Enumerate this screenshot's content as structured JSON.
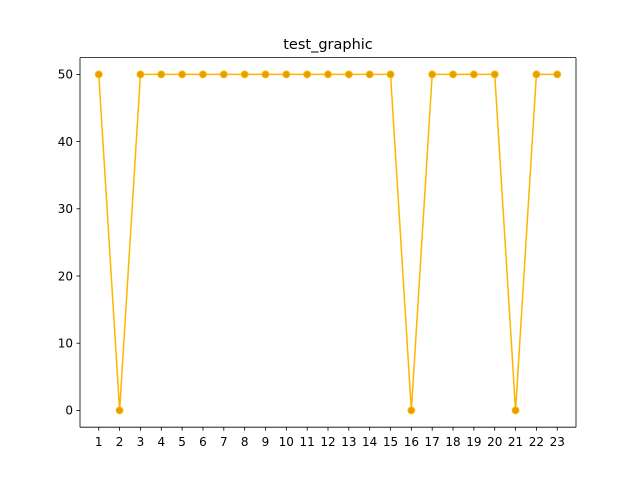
{
  "chart_data": {
    "type": "line",
    "title": "test_graphic",
    "xlabel": "",
    "ylabel": "",
    "x": [
      1,
      2,
      3,
      4,
      5,
      6,
      7,
      8,
      9,
      10,
      11,
      12,
      13,
      14,
      15,
      16,
      17,
      18,
      19,
      20,
      21,
      22,
      23
    ],
    "series": [
      {
        "values": [
          50,
          0,
          50,
          50,
          50,
          50,
          50,
          50,
          50,
          50,
          50,
          50,
          50,
          50,
          50,
          0,
          50,
          50,
          50,
          50,
          0,
          50,
          50
        ],
        "line_color": "#ffb400",
        "marker_color": "#e0a000",
        "marker": "circle"
      }
    ],
    "xticks": [
      "1",
      "2",
      "3",
      "4",
      "5",
      "6",
      "7",
      "8",
      "9",
      "10",
      "11",
      "12",
      "13",
      "14",
      "15",
      "16",
      "17",
      "18",
      "19",
      "20",
      "21",
      "22",
      "23"
    ],
    "yticks": [
      0,
      10,
      20,
      30,
      40,
      50
    ],
    "xlim": [
      0.1,
      23.9
    ],
    "ylim": [
      -2.5,
      52.5
    ],
    "grid": false,
    "legend": false
  }
}
